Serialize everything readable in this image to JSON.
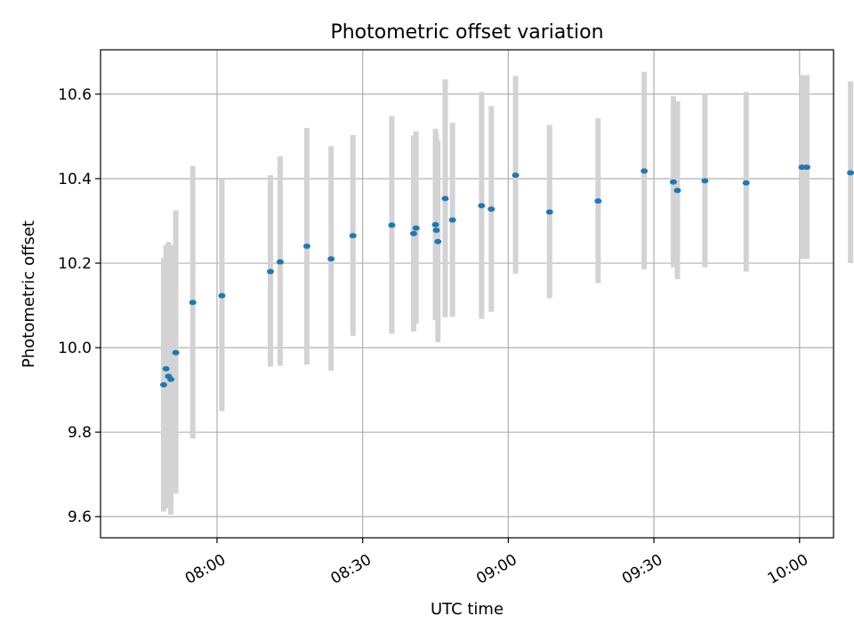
{
  "chart_data": {
    "type": "scatter",
    "title": "Photometric offset variation",
    "xlabel": "UTC time",
    "ylabel": "Photometric offset",
    "xlim": [
      "07:36",
      "10:07"
    ],
    "ylim": [
      9.55,
      10.705
    ],
    "x_ticks": [
      "08:00",
      "08:30",
      "09:00",
      "09:30",
      "10:00"
    ],
    "y_ticks": [
      "9.6",
      "9.8",
      "10.0",
      "10.2",
      "10.4",
      "10.6"
    ],
    "grid": true,
    "colors": {
      "marker": "#1f77b4",
      "errorbar": "#d3d3d3",
      "grid": "#b0b0b0"
    },
    "points": [
      {
        "x": "07:49:00",
        "y": 9.912,
        "ylo": 9.612,
        "yhi": 10.212
      },
      {
        "x": "07:49:30",
        "y": 9.95,
        "ylo": 9.62,
        "yhi": 10.243
      },
      {
        "x": "07:50:00",
        "y": 9.932,
        "ylo": 9.62,
        "yhi": 10.25
      },
      {
        "x": "07:50:30",
        "y": 9.925,
        "ylo": 9.605,
        "yhi": 10.243
      },
      {
        "x": "07:51:30",
        "y": 9.988,
        "ylo": 9.655,
        "yhi": 10.325
      },
      {
        "x": "07:55:00",
        "y": 10.107,
        "ylo": 9.785,
        "yhi": 10.43
      },
      {
        "x": "08:01:00",
        "y": 10.123,
        "ylo": 9.85,
        "yhi": 10.4
      },
      {
        "x": "08:11:00",
        "y": 10.18,
        "ylo": 9.955,
        "yhi": 10.408
      },
      {
        "x": "08:13:00",
        "y": 10.203,
        "ylo": 9.957,
        "yhi": 10.453
      },
      {
        "x": "08:18:30",
        "y": 10.24,
        "ylo": 9.96,
        "yhi": 10.52
      },
      {
        "x": "08:23:30",
        "y": 10.21,
        "ylo": 9.945,
        "yhi": 10.477
      },
      {
        "x": "08:28:00",
        "y": 10.265,
        "ylo": 10.028,
        "yhi": 10.503
      },
      {
        "x": "08:36:00",
        "y": 10.29,
        "ylo": 10.033,
        "yhi": 10.548
      },
      {
        "x": "08:40:30",
        "y": 10.27,
        "ylo": 10.038,
        "yhi": 10.502
      },
      {
        "x": "08:41:00",
        "y": 10.283,
        "ylo": 10.057,
        "yhi": 10.512
      },
      {
        "x": "08:45:00",
        "y": 10.291,
        "ylo": 10.065,
        "yhi": 10.518
      },
      {
        "x": "08:45:10",
        "y": 10.278,
        "ylo": 10.072,
        "yhi": 10.507
      },
      {
        "x": "08:45:30",
        "y": 10.251,
        "ylo": 10.013,
        "yhi": 10.49
      },
      {
        "x": "08:47:00",
        "y": 10.353,
        "ylo": 10.072,
        "yhi": 10.635
      },
      {
        "x": "08:48:30",
        "y": 10.302,
        "ylo": 10.073,
        "yhi": 10.532
      },
      {
        "x": "08:54:30",
        "y": 10.336,
        "ylo": 10.068,
        "yhi": 10.605
      },
      {
        "x": "08:56:30",
        "y": 10.328,
        "ylo": 10.085,
        "yhi": 10.572
      },
      {
        "x": "09:01:30",
        "y": 10.408,
        "ylo": 10.175,
        "yhi": 10.643
      },
      {
        "x": "09:08:30",
        "y": 10.321,
        "ylo": 10.117,
        "yhi": 10.527
      },
      {
        "x": "09:18:30",
        "y": 10.347,
        "ylo": 10.153,
        "yhi": 10.543
      },
      {
        "x": "09:28:00",
        "y": 10.418,
        "ylo": 10.185,
        "yhi": 10.653
      },
      {
        "x": "09:34:00",
        "y": 10.392,
        "ylo": 10.19,
        "yhi": 10.595
      },
      {
        "x": "09:34:50",
        "y": 10.372,
        "ylo": 10.162,
        "yhi": 10.583
      },
      {
        "x": "09:40:30",
        "y": 10.395,
        "ylo": 10.19,
        "yhi": 10.6
      },
      {
        "x": "09:49:00",
        "y": 10.39,
        "ylo": 10.18,
        "yhi": 10.605
      },
      {
        "x": "10:00:30",
        "y": 10.427,
        "ylo": 10.21,
        "yhi": 10.645
      },
      {
        "x": "10:01:30",
        "y": 10.427,
        "ylo": 10.21,
        "yhi": 10.645
      },
      {
        "x": "10:10:30",
        "y": 10.414,
        "ylo": 10.2,
        "yhi": 10.63
      }
    ]
  }
}
